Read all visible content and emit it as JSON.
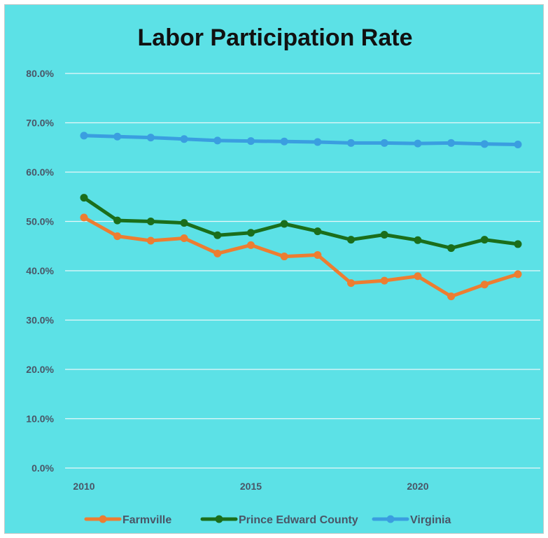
{
  "chart_data": {
    "type": "line",
    "title": "Labor Participation Rate",
    "x": [
      2010,
      2011,
      2012,
      2013,
      2014,
      2015,
      2016,
      2017,
      2018,
      2019,
      2020,
      2021,
      2022,
      2023
    ],
    "xticks": [
      2010,
      2015,
      2020
    ],
    "xtick_labels": [
      "2010",
      "2015",
      "2020"
    ],
    "xlim": [
      2010,
      2023
    ],
    "ylim": [
      0,
      80
    ],
    "yticks": [
      0,
      10,
      20,
      30,
      40,
      50,
      60,
      70,
      80
    ],
    "ytick_labels": [
      "0.0%",
      "10.0%",
      "20.0%",
      "30.0%",
      "40.0%",
      "50.0%",
      "60.0%",
      "70.0%",
      "80.0%"
    ],
    "grid": true,
    "legend_position": "bottom",
    "series": [
      {
        "name": "Farmville",
        "color": "#ed7d31",
        "values": [
          50.8,
          47.0,
          46.1,
          46.6,
          43.5,
          45.2,
          42.9,
          43.2,
          37.5,
          38.0,
          38.9,
          34.8,
          37.2,
          39.3
        ]
      },
      {
        "name": "Prince Edward County",
        "color": "#1b6e1b",
        "values": [
          54.8,
          50.2,
          50.0,
          49.7,
          47.2,
          47.7,
          49.5,
          48.0,
          46.3,
          47.3,
          46.2,
          44.6,
          46.3,
          45.4
        ]
      },
      {
        "name": "Virginia",
        "color": "#3a9ee0",
        "values": [
          67.4,
          67.2,
          67.0,
          66.7,
          66.4,
          66.3,
          66.2,
          66.1,
          65.9,
          65.9,
          65.8,
          65.9,
          65.7,
          65.6
        ]
      }
    ]
  }
}
